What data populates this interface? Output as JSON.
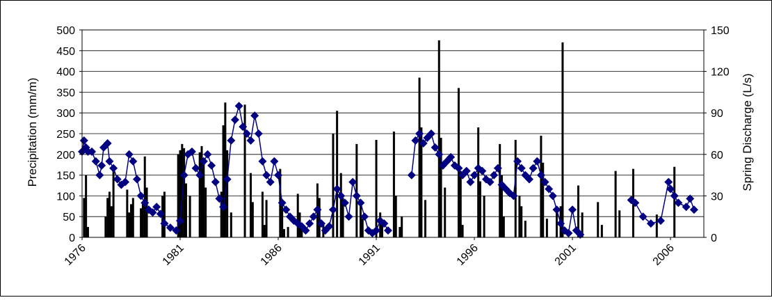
{
  "chart_data": {
    "type": "bar+line",
    "title": "",
    "xlabel": "",
    "ylabel_left": "Precipitation (mm/m)",
    "ylabel_right": "Spring Discharge (L/s)",
    "xlim": [
      1976,
      2007.7
    ],
    "ylim_left": [
      0,
      500
    ],
    "ylim_right": [
      0,
      150
    ],
    "x_ticks": [
      "1976",
      "1981",
      "1986",
      "1991",
      "1996",
      "2001",
      "2006"
    ],
    "y_ticks_left": [
      "0",
      "50",
      "100",
      "150",
      "200",
      "250",
      "300",
      "350",
      "400",
      "450",
      "500"
    ],
    "y_ticks_right": [
      "0",
      "30",
      "60",
      "90",
      "120",
      "150"
    ],
    "grid": "horizontal",
    "legend": "none",
    "colors": {
      "bars": "#000000",
      "line": "#000080",
      "markers": "#000080"
    },
    "series": [
      {
        "type": "bar",
        "axis": "left",
        "x": [
          1976.1,
          1976.2,
          1976.3,
          1977.2,
          1977.3,
          1977.4,
          1977.5,
          1977.6,
          1978.3,
          1978.4,
          1978.5,
          1978.6,
          1979.0,
          1979.1,
          1979.2,
          1979.3,
          1980.1,
          1980.2,
          1980.9,
          1981.0,
          1981.1,
          1981.2,
          1981.3,
          1981.5,
          1982.0,
          1982.1,
          1982.2,
          1982.3,
          1983.1,
          1983.2,
          1983.3,
          1983.4,
          1983.6,
          1984.3,
          1984.6,
          1984.7,
          1985.2,
          1985.3,
          1985.4,
          1986.1,
          1986.2,
          1986.3,
          1986.5,
          1987.0,
          1987.1,
          1987.2,
          1988.0,
          1988.1,
          1988.3,
          1988.8,
          1989.0,
          1989.2,
          1989.3,
          1990.0,
          1990.2,
          1990.3,
          1991.0,
          1991.2,
          1991.3,
          1991.9,
          1992.0,
          1992.2,
          1992.3,
          1993.2,
          1993.3,
          1993.5,
          1994.2,
          1994.3,
          1994.5,
          1995.2,
          1995.3,
          1995.4,
          1996.2,
          1996.3,
          1996.5,
          1997.3,
          1997.4,
          1997.5,
          1998.1,
          1998.3,
          1998.4,
          1998.6,
          1999.4,
          1999.5,
          1999.7,
          2000.2,
          2000.4,
          2000.5,
          2001.3,
          2001.5,
          2002.3,
          2002.5,
          2003.2,
          2003.4,
          2004.1,
          2005.3,
          2006.2
        ],
        "values": [
          95,
          150,
          25,
          50,
          95,
          110,
          75,
          170,
          115,
          60,
          80,
          95,
          70,
          85,
          195,
          120,
          100,
          110,
          200,
          210,
          225,
          215,
          130,
          100,
          205,
          220,
          180,
          120,
          110,
          270,
          325,
          210,
          60,
          320,
          155,
          85,
          110,
          30,
          90,
          165,
          80,
          20,
          25,
          105,
          60,
          25,
          130,
          95,
          35,
          250,
          305,
          155,
          95,
          225,
          80,
          45,
          235,
          60,
          30,
          255,
          100,
          25,
          50,
          385,
          265,
          90,
          475,
          240,
          120,
          360,
          160,
          30,
          265,
          135,
          100,
          225,
          150,
          50,
          235,
          100,
          75,
          40,
          245,
          180,
          45,
          70,
          75,
          470,
          125,
          60,
          85,
          30,
          160,
          65,
          165,
          55,
          170
        ]
      },
      {
        "type": "line",
        "axis": "right",
        "x": [
          1976.0,
          1976.1,
          1976.2,
          1976.3,
          1976.5,
          1976.7,
          1976.9,
          1977.0,
          1977.1,
          1977.3,
          1977.4,
          1977.6,
          1977.8,
          1978.0,
          1978.2,
          1978.4,
          1978.6,
          1978.8,
          1979.0,
          1979.2,
          1979.4,
          1979.6,
          1979.8,
          1980.0,
          1980.2,
          1980.5,
          1980.8,
          1981.0,
          1981.2,
          1981.4,
          1981.6,
          1981.8,
          1982.0,
          1982.2,
          1982.4,
          1982.6,
          1982.8,
          1983.0,
          1983.2,
          1983.4,
          1983.6,
          1983.8,
          1984.0,
          1984.2,
          1984.4,
          1984.6,
          1984.8,
          1985.0,
          1985.2,
          1985.4,
          1985.6,
          1985.8,
          1986.0,
          1986.2,
          1986.4,
          1986.6,
          1986.8,
          1987.0,
          1987.2,
          1987.4,
          1987.6,
          1987.8,
          1988.0,
          1988.2,
          1988.4,
          1988.6,
          1988.8,
          1989.0,
          1989.2,
          1989.4,
          1989.6,
          1989.8,
          1990.0,
          1990.2,
          1990.4,
          1990.6,
          1990.8,
          1991.0,
          1991.2,
          1991.4,
          1991.6
        ],
        "values": [
          62,
          70,
          65,
          62,
          62,
          55,
          45,
          52,
          65,
          68,
          55,
          50,
          42,
          38,
          40,
          60,
          55,
          42,
          30,
          25,
          20,
          18,
          22,
          17,
          10,
          7,
          5,
          12,
          45,
          60,
          62,
          50,
          45,
          55,
          60,
          52,
          40,
          28,
          22,
          42,
          70,
          85,
          95,
          80,
          75,
          70,
          88,
          75,
          55,
          45,
          40,
          55,
          45,
          25,
          20,
          15,
          12,
          10,
          8,
          5,
          10,
          15,
          20,
          10,
          5,
          8,
          20,
          35,
          30,
          25,
          15,
          40,
          30,
          25,
          15,
          5,
          3,
          5,
          12,
          10,
          5
        ]
      },
      {
        "type": "line",
        "axis": "right",
        "x": [
          1992.8,
          1993.0,
          1993.2,
          1993.4,
          1993.6,
          1993.8,
          1994.0,
          1994.2,
          1994.4,
          1994.6,
          1994.8,
          1995.0,
          1995.2,
          1995.4,
          1995.6,
          1995.8,
          1996.0,
          1996.2,
          1996.4,
          1996.6,
          1996.8,
          1997.0,
          1997.2,
          1997.4,
          1997.6,
          1997.8,
          1998.0,
          1998.2,
          1998.4,
          1998.6,
          1998.8,
          1999.0,
          1999.2,
          1999.4,
          1999.6,
          1999.8,
          2000.0,
          2000.2,
          2000.4,
          2000.6,
          2000.8,
          2001.0,
          2001.2,
          2001.4
        ],
        "values": [
          45,
          70,
          75,
          68,
          72,
          75,
          65,
          60,
          52,
          55,
          58,
          52,
          50,
          45,
          48,
          40,
          45,
          50,
          48,
          42,
          40,
          45,
          50,
          38,
          35,
          32,
          30,
          55,
          50,
          45,
          42,
          50,
          55,
          45,
          40,
          35,
          30,
          20,
          10,
          5,
          3,
          20,
          5,
          2
        ]
      },
      {
        "type": "line",
        "axis": "right",
        "x": [
          2004.0,
          2004.2,
          2004.6,
          2005.0,
          2005.5,
          2005.9,
          2006.0,
          2006.2,
          2006.4,
          2006.8,
          2007.0,
          2007.2
        ],
        "values": [
          27,
          25,
          15,
          10,
          12,
          40,
          35,
          30,
          25,
          22,
          28,
          20
        ]
      }
    ]
  }
}
